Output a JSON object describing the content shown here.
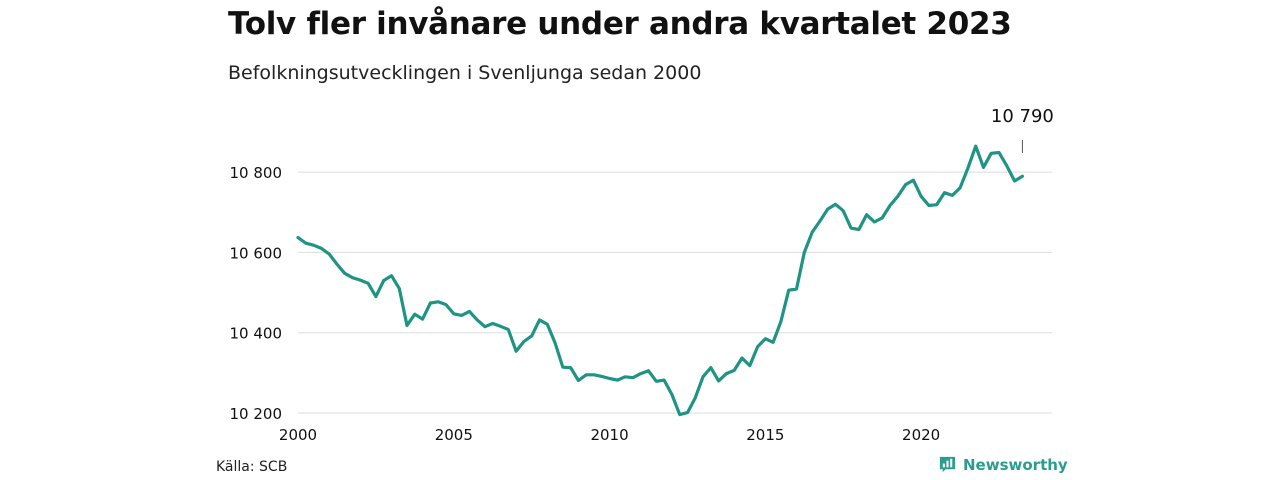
{
  "header": {
    "title": "Tolv fler invånare under andra kvartalet 2023",
    "subtitle": "Befolkningsutvecklingen i Svenljunga sedan 2000"
  },
  "footer": {
    "source": "Källa: SCB",
    "brand": "Newsworthy",
    "brand_icon": "chart-logo-icon"
  },
  "colors": {
    "line": "#1f9484",
    "grid": "#dddddd",
    "brand": "#2a9d8f"
  },
  "chart_data": {
    "type": "line",
    "title": "Tolv fler invånare under andra kvartalet 2023",
    "subtitle": "Befolkningsutvecklingen i Svenljunga sedan 2000",
    "xlabel": "",
    "ylabel": "",
    "xlim": [
      2000,
      2024.2
    ],
    "ylim": [
      10175,
      10930
    ],
    "y_ticks": [
      10200,
      10400,
      10600,
      10800
    ],
    "y_tick_labels": [
      "10 200",
      "10 400",
      "10 600",
      "10 800"
    ],
    "x_ticks": [
      2000,
      2005,
      2010,
      2015,
      2020
    ],
    "x_tick_labels": [
      "2000",
      "2005",
      "2010",
      "2015",
      "2020"
    ],
    "grid": "horizontal",
    "last_value_label": "10 790",
    "series": [
      {
        "values": [
          [
            2000.0,
            10637
          ],
          [
            2000.25,
            10623
          ],
          [
            2000.5,
            10618
          ],
          [
            2000.75,
            10610
          ],
          [
            2001.0,
            10596
          ],
          [
            2001.25,
            10571
          ],
          [
            2001.5,
            10548
          ],
          [
            2001.75,
            10537
          ],
          [
            2002.0,
            10531
          ],
          [
            2002.25,
            10523
          ],
          [
            2002.5,
            10490
          ],
          [
            2002.75,
            10530
          ],
          [
            2003.0,
            10542
          ],
          [
            2003.25,
            10510
          ],
          [
            2003.5,
            10418
          ],
          [
            2003.75,
            10446
          ],
          [
            2004.0,
            10434
          ],
          [
            2004.25,
            10474
          ],
          [
            2004.5,
            10477
          ],
          [
            2004.75,
            10470
          ],
          [
            2005.0,
            10447
          ],
          [
            2005.25,
            10443
          ],
          [
            2005.5,
            10453
          ],
          [
            2005.75,
            10432
          ],
          [
            2006.0,
            10415
          ],
          [
            2006.25,
            10423
          ],
          [
            2006.5,
            10416
          ],
          [
            2006.75,
            10408
          ],
          [
            2007.0,
            10354
          ],
          [
            2007.25,
            10378
          ],
          [
            2007.5,
            10392
          ],
          [
            2007.75,
            10432
          ],
          [
            2008.0,
            10421
          ],
          [
            2008.25,
            10375
          ],
          [
            2008.5,
            10314
          ],
          [
            2008.75,
            10313
          ],
          [
            2009.0,
            10281
          ],
          [
            2009.25,
            10295
          ],
          [
            2009.5,
            10295
          ],
          [
            2009.75,
            10291
          ],
          [
            2010.0,
            10286
          ],
          [
            2010.25,
            10282
          ],
          [
            2010.5,
            10290
          ],
          [
            2010.75,
            10288
          ],
          [
            2011.0,
            10298
          ],
          [
            2011.25,
            10305
          ],
          [
            2011.5,
            10279
          ],
          [
            2011.75,
            10282
          ],
          [
            2012.0,
            10246
          ],
          [
            2012.25,
            10196
          ],
          [
            2012.5,
            10201
          ],
          [
            2012.75,
            10238
          ],
          [
            2013.0,
            10290
          ],
          [
            2013.25,
            10313
          ],
          [
            2013.5,
            10280
          ],
          [
            2013.75,
            10298
          ],
          [
            2014.0,
            10306
          ],
          [
            2014.25,
            10337
          ],
          [
            2014.5,
            10318
          ],
          [
            2014.75,
            10365
          ],
          [
            2015.0,
            10385
          ],
          [
            2015.25,
            10376
          ],
          [
            2015.5,
            10428
          ],
          [
            2015.75,
            10506
          ],
          [
            2016.0,
            10509
          ],
          [
            2016.25,
            10600
          ],
          [
            2016.5,
            10650
          ],
          [
            2016.75,
            10678
          ],
          [
            2017.0,
            10708
          ],
          [
            2017.25,
            10720
          ],
          [
            2017.5,
            10704
          ],
          [
            2017.75,
            10661
          ],
          [
            2018.0,
            10657
          ],
          [
            2018.25,
            10694
          ],
          [
            2018.5,
            10676
          ],
          [
            2018.75,
            10686
          ],
          [
            2019.0,
            10717
          ],
          [
            2019.25,
            10740
          ],
          [
            2019.5,
            10769
          ],
          [
            2019.75,
            10780
          ],
          [
            2020.0,
            10740
          ],
          [
            2020.25,
            10717
          ],
          [
            2020.5,
            10719
          ],
          [
            2020.75,
            10749
          ],
          [
            2021.0,
            10742
          ],
          [
            2021.25,
            10761
          ],
          [
            2021.5,
            10810
          ],
          [
            2021.75,
            10865
          ],
          [
            2022.0,
            10812
          ],
          [
            2022.25,
            10847
          ],
          [
            2022.5,
            10849
          ],
          [
            2022.75,
            10816
          ],
          [
            2023.0,
            10778
          ],
          [
            2023.25,
            10790
          ]
        ]
      }
    ]
  }
}
